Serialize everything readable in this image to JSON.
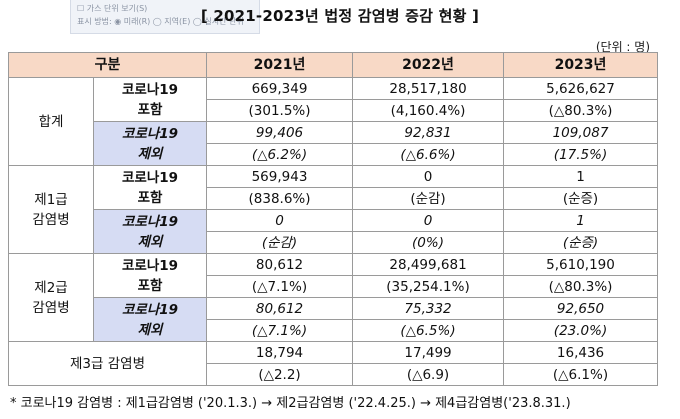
{
  "top_fragment": {
    "line1": "☐ 가스 단위 보기(S)",
    "line2": "표시 방법: ◉ 미래(R)  ◯ 지역(E)  ◯ 실시간 단위"
  },
  "title": "[ 2021-2023년 법정 감염병 증감 현황 ]",
  "unit": "(단위 : 명)",
  "headers": {
    "category": "구분",
    "y2021": "2021년",
    "y2022": "2022년",
    "y2023": "2023년"
  },
  "groups": [
    {
      "label_line1": "합계",
      "label_line2": "",
      "incl": {
        "sub_line1": "코로나19",
        "sub_line2": "포함",
        "values": [
          "669,349",
          "28,517,180",
          "5,626,627"
        ],
        "rates": [
          "(301.5%)",
          "(4,160.4%)",
          "(△80.3%)"
        ]
      },
      "excl": {
        "sub_line1": "코로나19",
        "sub_line2": "제외",
        "values": [
          "99,406",
          "92,831",
          "109,087"
        ],
        "rates": [
          "(△6.2%)",
          "(△6.6%)",
          "(17.5%)"
        ]
      }
    },
    {
      "label_line1": "제1급",
      "label_line2": "감염병",
      "incl": {
        "sub_line1": "코로나19",
        "sub_line2": "포함",
        "values": [
          "569,943",
          "0",
          "1"
        ],
        "rates": [
          "(838.6%)",
          "(순감)",
          "(순증)"
        ]
      },
      "excl": {
        "sub_line1": "코로나19",
        "sub_line2": "제외",
        "values": [
          "0",
          "0",
          "1"
        ],
        "rates": [
          "(순감)",
          "(0%)",
          "(순증)"
        ]
      }
    },
    {
      "label_line1": "제2급",
      "label_line2": "감염병",
      "incl": {
        "sub_line1": "코로나19",
        "sub_line2": "포함",
        "values": [
          "80,612",
          "28,499,681",
          "5,610,190"
        ],
        "rates": [
          "(△7.1%)",
          "(35,254.1%)",
          "(△80.3%)"
        ]
      },
      "excl": {
        "sub_line1": "코로나19",
        "sub_line2": "제외",
        "values": [
          "80,612",
          "75,332",
          "92,650"
        ],
        "rates": [
          "(△7.1%)",
          "(△6.5%)",
          "(23.0%)"
        ]
      }
    }
  ],
  "group3": {
    "label": "제3급 감염병",
    "values": [
      "18,794",
      "17,499",
      "16,436"
    ],
    "rates": [
      "(△2.2)",
      "(△6.9)",
      "(△6.1%)"
    ]
  },
  "footnote": "* 코로나19 감염병 : 제1급감염병 ('20.1.3.) → 제2급감염병 ('22.4.25.) → 제4급감염병('23.8.31.)"
}
